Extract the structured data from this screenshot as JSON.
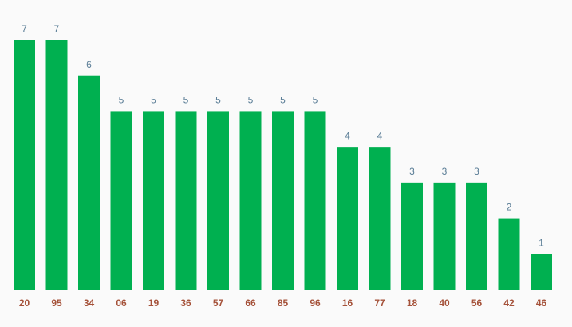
{
  "chart_data": {
    "type": "bar",
    "categories": [
      "20",
      "95",
      "34",
      "06",
      "19",
      "36",
      "57",
      "66",
      "85",
      "96",
      "16",
      "77",
      "18",
      "40",
      "56",
      "42",
      "46"
    ],
    "values": [
      7,
      7,
      6,
      5,
      5,
      5,
      5,
      5,
      5,
      5,
      4,
      4,
      3,
      3,
      3,
      2,
      1
    ],
    "color": "#00b050"
  }
}
